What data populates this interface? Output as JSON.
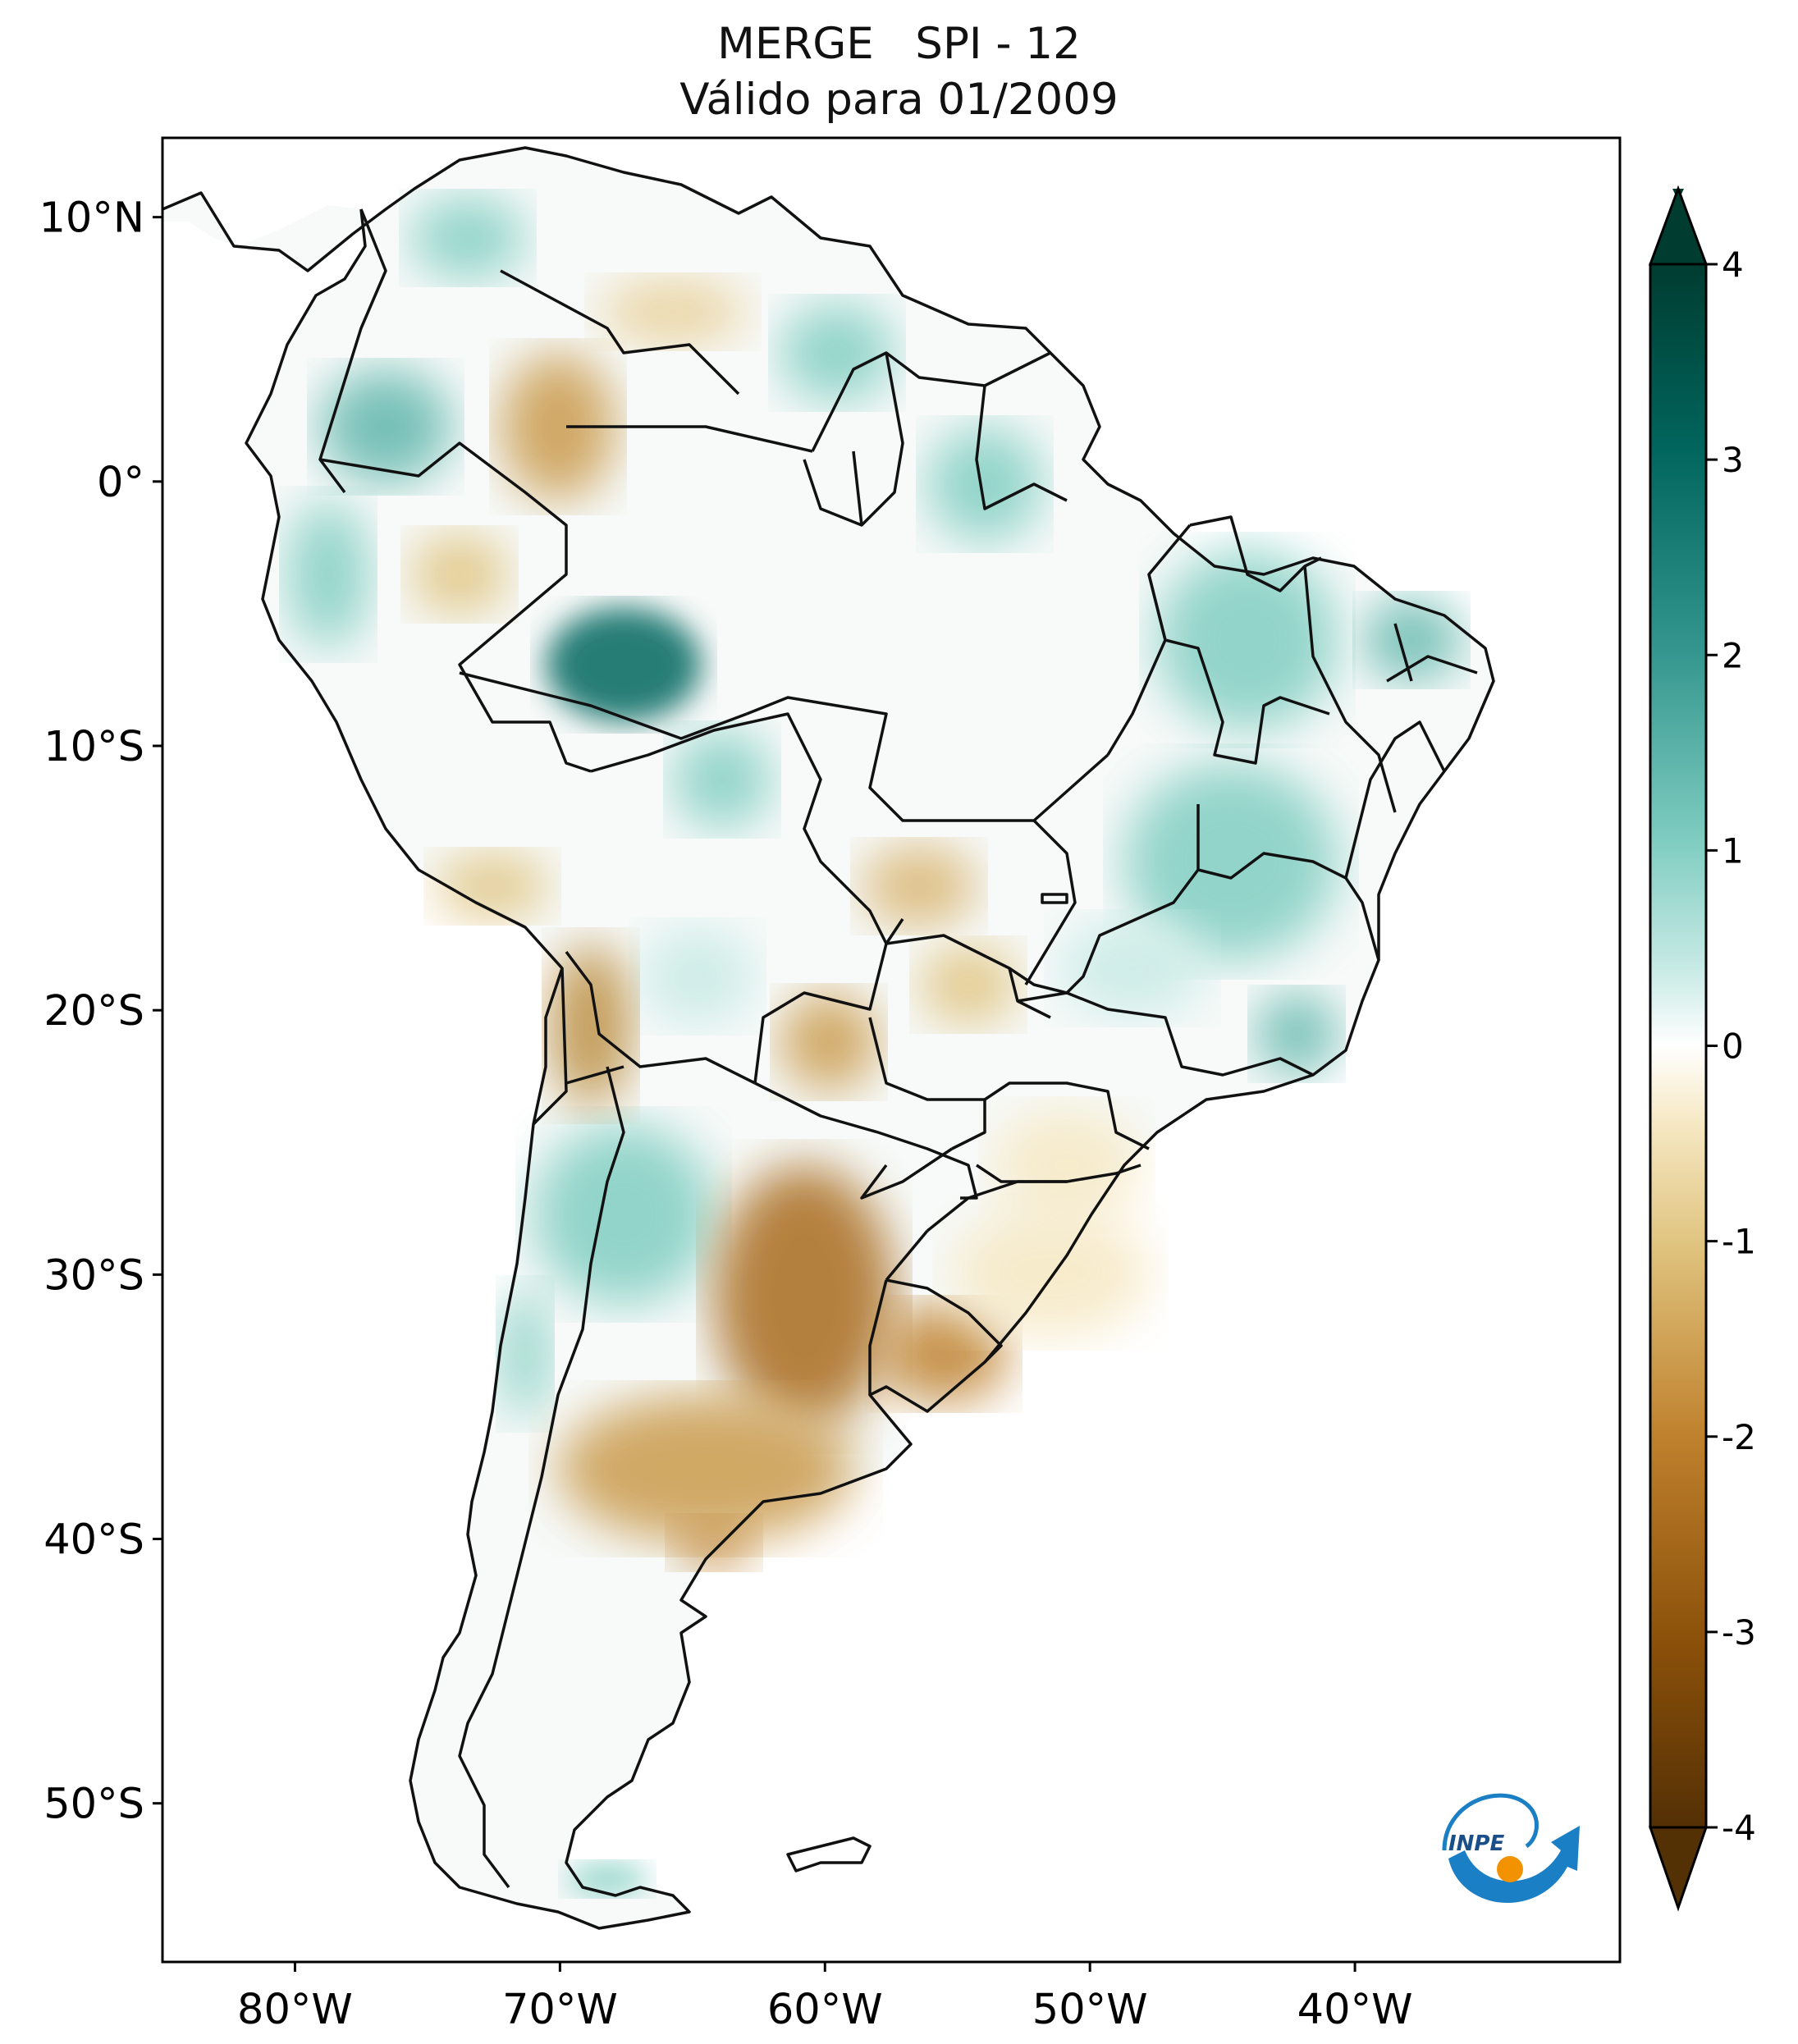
{
  "title": {
    "line1": "MERGE   SPI - 12",
    "line2": "Válido para 01/2009"
  },
  "map": {
    "region": "South America",
    "variable": "SPI - 12",
    "lat_ticks": [
      {
        "value": 10,
        "label": "10°N"
      },
      {
        "value": 0,
        "label": "0°"
      },
      {
        "value": -10,
        "label": "10°S"
      },
      {
        "value": -20,
        "label": "20°S"
      },
      {
        "value": -30,
        "label": "30°S"
      },
      {
        "value": -40,
        "label": "40°S"
      },
      {
        "value": -50,
        "label": "50°S"
      }
    ],
    "lon_ticks": [
      {
        "value": -80,
        "label": "80°W"
      },
      {
        "value": -70,
        "label": "70°W"
      },
      {
        "value": -60,
        "label": "60°W"
      },
      {
        "value": -50,
        "label": "50°W"
      },
      {
        "value": -40,
        "label": "40°W"
      }
    ],
    "lon_range": [
      -85,
      -30
    ],
    "lat_range": [
      -56,
      13
    ]
  },
  "colorbar": {
    "ticks": [
      "4",
      "3",
      "2",
      "1",
      "0",
      "-1",
      "-2",
      "-3",
      "-4"
    ],
    "range": [
      -4,
      4
    ],
    "extend": "both",
    "colors": {
      "max": "#003c30",
      "high": "#01665e",
      "mid_high": "#35978f",
      "light_high": "#80cdc1",
      "pale_high": "#c7eae5",
      "zero": "#ffffff",
      "pale_low": "#f6e8c3",
      "light_low": "#dfc27d",
      "mid_low": "#bf812d",
      "low": "#8c510a",
      "min": "#543005"
    }
  },
  "logo": {
    "text": "INPE",
    "colors": {
      "blue": "#1a7fc4",
      "orange": "#f39200"
    }
  }
}
